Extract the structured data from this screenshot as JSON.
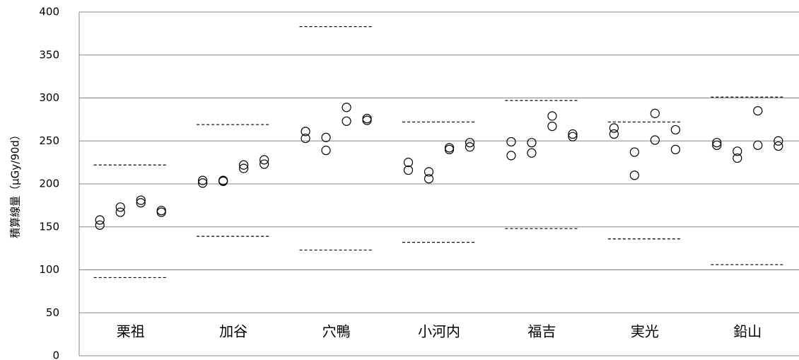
{
  "chart_data": {
    "type": "dot",
    "y_label": "積算線量（μGy/90d）",
    "categories": [
      "栗祖",
      "加谷",
      "穴鴨",
      "小河内",
      "福吉",
      "実光",
      "鉛山"
    ],
    "values": [
      [
        [
          158,
          152
        ],
        [
          173,
          167
        ],
        [
          181,
          178
        ],
        [
          169,
          167
        ]
      ],
      [
        [
          204,
          201
        ],
        [
          204,
          203
        ],
        [
          222,
          218
        ],
        [
          228,
          223
        ]
      ],
      [
        [
          261,
          253
        ],
        [
          254,
          239
        ],
        [
          289,
          273
        ],
        [
          276,
          274
        ]
      ],
      [
        [
          225,
          216
        ],
        [
          214,
          206
        ],
        [
          242,
          240
        ],
        [
          248,
          243
        ]
      ],
      [
        [
          249,
          233
        ],
        [
          248,
          236
        ],
        [
          279,
          267
        ],
        [
          258,
          255
        ]
      ],
      [
        [
          265,
          258
        ],
        [
          237,
          210
        ],
        [
          282,
          251
        ],
        [
          263,
          240
        ]
      ],
      [
        [
          248,
          245
        ],
        [
          238,
          230
        ],
        [
          285,
          245
        ],
        [
          250,
          244
        ]
      ]
    ],
    "upper_limits": [
      222,
      269,
      383,
      272,
      297,
      272,
      301
    ],
    "lower_limits": [
      91,
      139,
      123,
      132,
      148,
      136,
      106
    ],
    "marker_color": "#000000",
    "limit_color": "#000000",
    "ylim": [
      0,
      400
    ],
    "yticks": [
      0,
      50,
      100,
      150,
      200,
      250,
      300,
      350,
      400
    ],
    "grid": true
  }
}
